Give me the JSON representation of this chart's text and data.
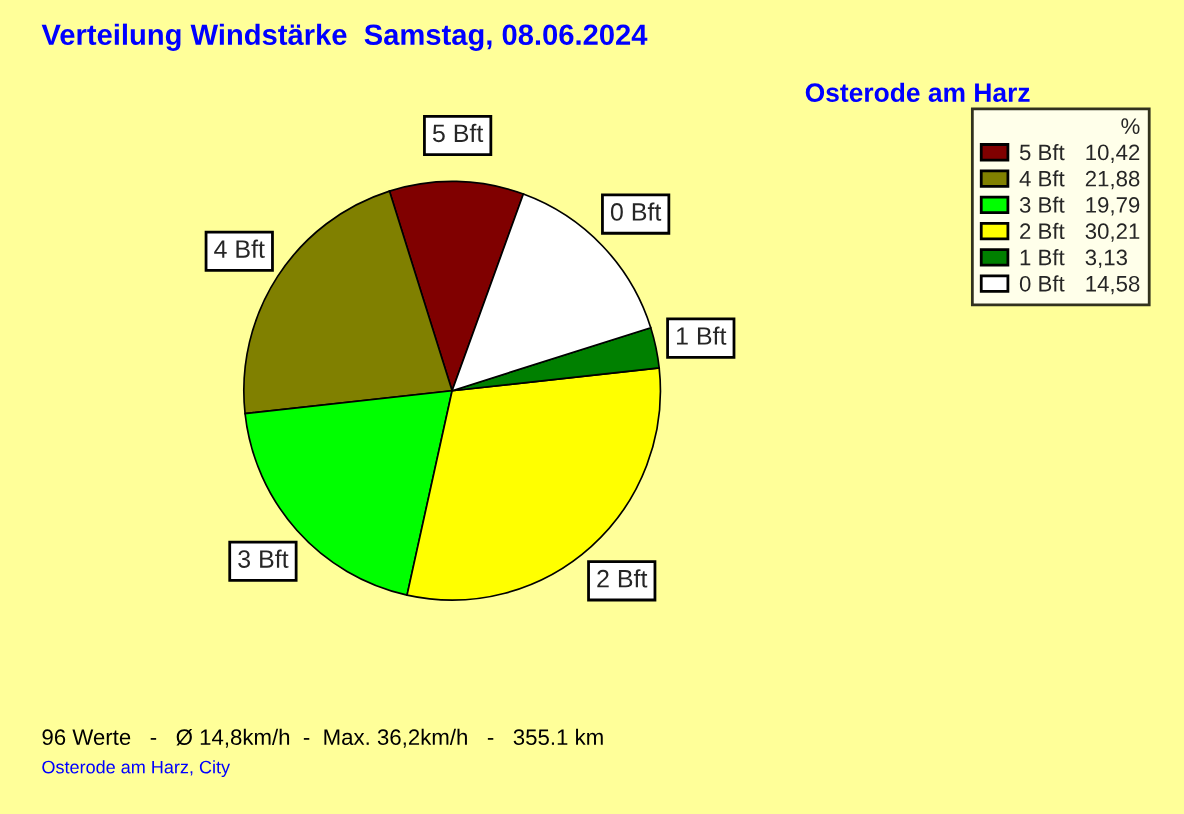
{
  "chart_data": {
    "type": "pie",
    "title": "Verteilung Windstärke  Samstag, 08.06.2024",
    "subtitle": "Osterode am Harz",
    "categories": [
      "5 Bft",
      "4 Bft",
      "3 Bft",
      "2 Bft",
      "1 Bft",
      "0 Bft"
    ],
    "values": [
      10.42,
      21.88,
      19.79,
      30.21,
      3.13,
      14.58
    ],
    "value_labels": [
      "10,42",
      "21,88",
      "19,79",
      "30,21",
      "3,13",
      "14,58"
    ],
    "colors": [
      "#800000",
      "#808000",
      "#00ff00",
      "#ffff00",
      "#008000",
      "#ffffff"
    ],
    "legend": "top right",
    "legend_title": "%",
    "annotations": [
      "96 Werte   -   Ø 14,8km/h  -  Max. 36,2km/h   -   355.1 km",
      "Osterode am Harz, City"
    ]
  }
}
